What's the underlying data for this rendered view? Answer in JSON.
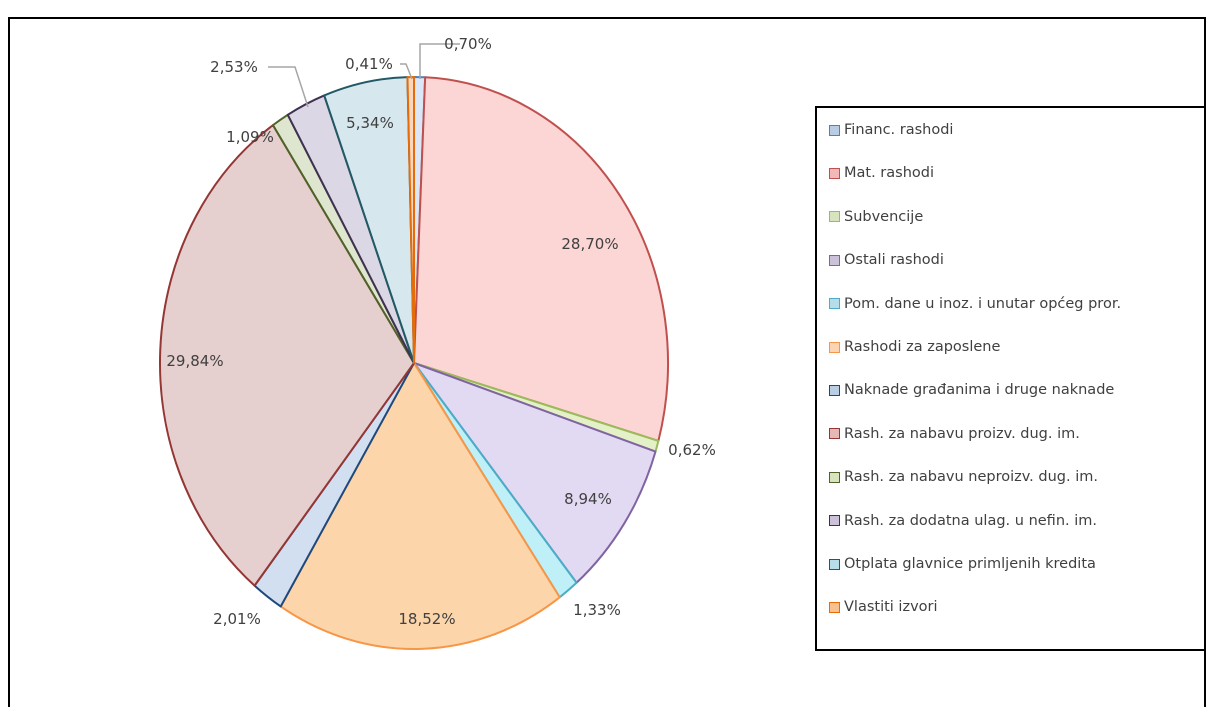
{
  "chart_data": {
    "type": "pie",
    "title": "",
    "categories": [
      "Financ. rashodi",
      "Mat. rashodi",
      "Subvencije",
      "Ostali rashodi",
      "Pom. dane u inoz. i unutar općeg pror.",
      "Rashodi za zaposlene",
      "Naknade građanima i druge naknade",
      "Rash. za nabavu proizv. dug. im.",
      "Rash. za nabavu neproizv. dug. im.",
      "Rash. za dodatna ulag. u nefin. im.",
      "Otplata glavnice primljenih kredita",
      "Vlastiti izvori"
    ],
    "values": [
      0.7,
      28.7,
      0.62,
      8.94,
      1.33,
      18.52,
      2.01,
      29.84,
      1.09,
      2.53,
      5.34,
      0.41
    ],
    "data_labels": [
      "0,70%",
      "28,70%",
      "0,62%",
      "8,94%",
      "1,33%",
      "18,52%",
      "2,01%",
      "29,84%",
      "1,09%",
      "2,53%",
      "5,34%",
      "0,41%"
    ],
    "fill_colors": [
      "#dbe7f6",
      "#fcd5d5",
      "#e4f0c8",
      "#e2d9f3",
      "#bff0f8",
      "#fcd5ab",
      "#d2dff0",
      "#e5cfcf",
      "#dfe6cf",
      "#dcd7e4",
      "#d7e7ee",
      "#fbd8bd"
    ],
    "edge_colors": [
      "#4f81bd",
      "#c0504d",
      "#9bbb59",
      "#8064a2",
      "#4bacc6",
      "#f79646",
      "#1f497d",
      "#943634",
      "#4f6228",
      "#3f3151",
      "#215967",
      "#e46c0a"
    ],
    "legend_swatch_colors": [
      "#b8cce4",
      "#f2b8b7",
      "#d7e4bd",
      "#ccc1da",
      "#b7dee8",
      "#fbd4b4",
      "#b9cde5",
      "#e6b9b8",
      "#d7e4bc",
      "#ccc0da",
      "#b6dde8",
      "#fac090"
    ],
    "legend_position": "right",
    "start_angle": "top, clockwise"
  }
}
